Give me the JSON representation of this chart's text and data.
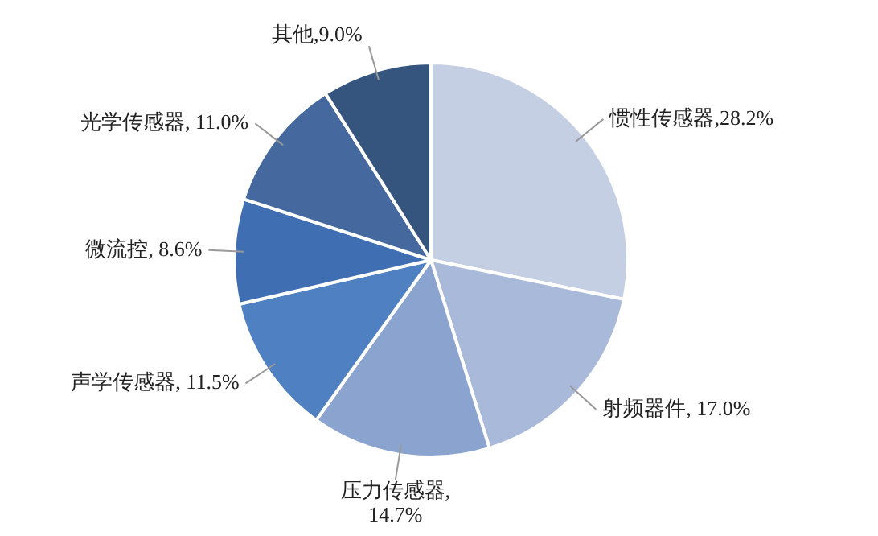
{
  "chart_data": {
    "type": "pie",
    "categories": [
      "惯性传感器",
      "射频器件",
      "压力传感器",
      "声学传感器",
      "微流控",
      "光学传感器",
      "其他"
    ],
    "values": [
      28.2,
      17.0,
      14.7,
      11.5,
      8.6,
      11.0,
      9.0
    ],
    "value_labels": [
      ",28.2%",
      ", 17.0%",
      ",\n14.7%",
      ", 11.5%",
      ", 8.6%",
      ", 11.0%",
      ",9.0%"
    ],
    "colors": [
      "#c5cfe3",
      "#a9b9d9",
      "#8aa3cf",
      "#4f80c1",
      "#3f6eb2",
      "#45699f",
      "#35557f"
    ],
    "legend": false
  }
}
